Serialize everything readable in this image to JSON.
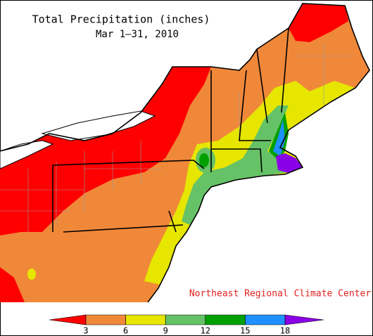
{
  "header": {
    "title": "Total Precipitation (inches)",
    "subtitle": "Mar 1–31, 2010"
  },
  "credit": "Northeast Regional Climate Center",
  "legend": {
    "ticks": [
      3,
      6,
      9,
      12,
      15,
      18
    ],
    "colors": [
      "#ff0000",
      "#f0883a",
      "#e6e600",
      "#66c266",
      "#00a000",
      "#1e90ff",
      "#8a00e6"
    ]
  }
}
